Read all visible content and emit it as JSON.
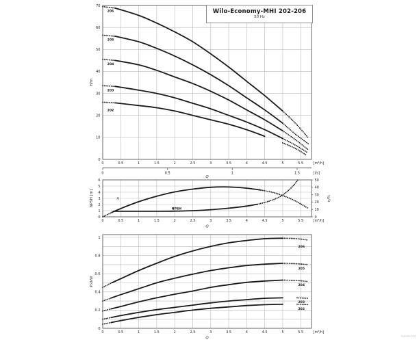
{
  "title_box": {
    "title": "Wilo-Economy-MHI 202-206",
    "subtitle": "50 Hz"
  },
  "watermark": "вимкор",
  "chart_data": [
    {
      "id": "head",
      "type": "line",
      "xlabel": "Q",
      "x_unit": "[m³/h]",
      "ylabel": "H/m",
      "xlim": [
        0,
        5.8
      ],
      "ylim": [
        0,
        70
      ],
      "grid": true,
      "xticks": [
        [
          0,
          "0"
        ],
        [
          0.5,
          "0.5"
        ],
        [
          1,
          "1"
        ],
        [
          1.5,
          "1.5"
        ],
        [
          2,
          "2"
        ],
        [
          2.5,
          "2.5"
        ],
        [
          3,
          "3"
        ],
        [
          3.5,
          "3.5"
        ],
        [
          4,
          "4"
        ],
        [
          4.5,
          "4.5"
        ],
        [
          5,
          "5"
        ],
        [
          5.5,
          "5.5"
        ]
      ],
      "yticks": [
        [
          0,
          "0"
        ],
        [
          10,
          "10"
        ],
        [
          20,
          "20"
        ],
        [
          30,
          "30"
        ],
        [
          40,
          "40"
        ],
        [
          50,
          "50"
        ],
        [
          60,
          "60"
        ],
        [
          70,
          "70"
        ]
      ],
      "secondary_axis": {
        "unit": "[l/s]",
        "ticks": [
          [
            0,
            "0"
          ],
          [
            1.8,
            "0.5"
          ],
          [
            3.6,
            "1"
          ],
          [
            5.4,
            "1.5"
          ]
        ]
      },
      "series": [
        {
          "name": "206",
          "label": "206",
          "label_at": [
            0.22,
            67.5
          ],
          "solid": [
            0.35,
            5.0
          ],
          "points": [
            [
              0,
              69.5
            ],
            [
              0.35,
              68.8
            ],
            [
              1,
              65.5
            ],
            [
              1.5,
              62
            ],
            [
              2,
              58
            ],
            [
              2.5,
              53.5
            ],
            [
              3,
              48
            ],
            [
              3.5,
              42
            ],
            [
              4,
              35.5
            ],
            [
              4.5,
              29
            ],
            [
              5,
              22
            ],
            [
              5.35,
              16.5
            ],
            [
              5.7,
              10
            ]
          ]
        },
        {
          "name": "205",
          "label": "205",
          "label_at": [
            0.22,
            54.5
          ],
          "solid": [
            0.35,
            5.0
          ],
          "points": [
            [
              0,
              56.5
            ],
            [
              0.35,
              56
            ],
            [
              1,
              53.5
            ],
            [
              1.5,
              50.5
            ],
            [
              2,
              47
            ],
            [
              2.5,
              43
            ],
            [
              3,
              38.5
            ],
            [
              3.5,
              33.5
            ],
            [
              4,
              28
            ],
            [
              4.5,
              22.5
            ],
            [
              5,
              16.5
            ],
            [
              5.35,
              11.5
            ],
            [
              5.72,
              7
            ]
          ]
        },
        {
          "name": "204",
          "label": "204",
          "label_at": [
            0.22,
            43.5
          ],
          "solid": [
            0.35,
            5.0
          ],
          "points": [
            [
              0,
              45.5
            ],
            [
              0.35,
              45
            ],
            [
              1,
              43
            ],
            [
              1.5,
              40.5
            ],
            [
              2,
              37.5
            ],
            [
              2.5,
              34.5
            ],
            [
              3,
              31
            ],
            [
              3.5,
              27
            ],
            [
              4,
              22.5
            ],
            [
              4.5,
              18
            ],
            [
              5,
              13
            ],
            [
              5.35,
              9
            ],
            [
              5.7,
              4.5
            ]
          ]
        },
        {
          "name": "203",
          "label": "203",
          "label_at": [
            0.22,
            31.5
          ],
          "solid": [
            0.35,
            5.0
          ],
          "points": [
            [
              0,
              33.5
            ],
            [
              0.35,
              33.2
            ],
            [
              1,
              31.5
            ],
            [
              1.5,
              30
            ],
            [
              2,
              28
            ],
            [
              2.5,
              25.5
            ],
            [
              3,
              23
            ],
            [
              3.5,
              20
            ],
            [
              4,
              17
            ],
            [
              4.5,
              13.5
            ],
            [
              5,
              9.5
            ],
            [
              5.35,
              6.5
            ],
            [
              5.7,
              3
            ]
          ]
        },
        {
          "name": "202",
          "label": "202",
          "label_at": [
            0.22,
            22.5
          ],
          "solid": [
            0.35,
            4.95
          ],
          "points": [
            [
              0,
              26
            ],
            [
              0.35,
              25.7
            ],
            [
              1,
              24.5
            ],
            [
              1.5,
              23.5
            ],
            [
              2,
              22
            ],
            [
              2.5,
              20
            ],
            [
              3,
              18
            ],
            [
              3.5,
              16
            ],
            [
              4,
              13.5
            ],
            [
              4.5,
              10.5
            ],
            [
              5,
              7.5
            ],
            [
              5.35,
              5
            ],
            [
              5.65,
              2
            ]
          ]
        }
      ]
    },
    {
      "id": "npsh",
      "type": "line",
      "xlabel": "Q",
      "x_unit": "[m³/h]",
      "ylabel": "NPSH [m]",
      "ylabel_right": "η/%",
      "xlim": [
        0,
        5.8
      ],
      "ylim": [
        0,
        6
      ],
      "ylim_right": [
        0,
        50
      ],
      "grid": true,
      "xticks": [
        [
          0,
          "0"
        ],
        [
          0.5,
          "0.5"
        ],
        [
          1,
          "1"
        ],
        [
          1.5,
          "1.5"
        ],
        [
          2,
          "2"
        ],
        [
          2.5,
          "2.5"
        ],
        [
          3,
          "3"
        ],
        [
          3.5,
          "3.5"
        ],
        [
          4,
          "4"
        ],
        [
          4.5,
          "4.5"
        ],
        [
          5,
          "5"
        ],
        [
          5.5,
          "5.5"
        ]
      ],
      "yticks": [
        [
          0,
          "0"
        ],
        [
          1,
          "1"
        ],
        [
          2,
          "2"
        ],
        [
          3,
          "3"
        ],
        [
          4,
          "4"
        ],
        [
          5,
          "5"
        ],
        [
          6,
          "6"
        ]
      ],
      "yticks_right": [
        [
          0,
          "0"
        ],
        [
          10,
          "10"
        ],
        [
          20,
          "20"
        ],
        [
          30,
          "30"
        ],
        [
          40,
          "40"
        ],
        [
          50,
          "50"
        ]
      ],
      "series": [
        {
          "name": "eta",
          "label": "η",
          "label_at": [
            0.42,
            3.0
          ],
          "solid": [
            0.25,
            4.4
          ],
          "points": [
            [
              0,
              0
            ],
            [
              0.25,
              0.7
            ],
            [
              0.5,
              1.35
            ],
            [
              1,
              2.45
            ],
            [
              1.5,
              3.35
            ],
            [
              2,
              4.05
            ],
            [
              2.5,
              4.5
            ],
            [
              3,
              4.8
            ],
            [
              3.5,
              4.85
            ],
            [
              4,
              4.65
            ],
            [
              4.4,
              4.35
            ],
            [
              4.8,
              3.85
            ],
            [
              5.2,
              3.0
            ],
            [
              5.5,
              2.1
            ],
            [
              5.7,
              1.4
            ]
          ]
        },
        {
          "name": "npsh",
          "label": "NPSH",
          "label_at": [
            2.05,
            1.35
          ],
          "solid": [
            0.3,
            4.3
          ],
          "points": [
            [
              0.3,
              0.9
            ],
            [
              1,
              0.9
            ],
            [
              1.5,
              0.9
            ],
            [
              2,
              0.92
            ],
            [
              2.5,
              1.0
            ],
            [
              3,
              1.15
            ],
            [
              3.5,
              1.4
            ],
            [
              4,
              1.75
            ],
            [
              4.3,
              2.05
            ],
            [
              4.6,
              2.5
            ],
            [
              4.9,
              3.2
            ],
            [
              5.1,
              4.0
            ],
            [
              5.3,
              5.1
            ],
            [
              5.42,
              6.0
            ]
          ]
        }
      ]
    },
    {
      "id": "power",
      "type": "line",
      "xlabel": "Q",
      "x_unit": "[m³/h]",
      "ylabel": "P₂/kW",
      "xlim": [
        0,
        5.8
      ],
      "ylim": [
        0,
        1.03
      ],
      "grid": true,
      "y_grid_step": 0.1,
      "xticks": [
        [
          0,
          "0"
        ],
        [
          0.5,
          "0.5"
        ],
        [
          1,
          "1"
        ],
        [
          1.5,
          "1.5"
        ],
        [
          2,
          "2"
        ],
        [
          2.5,
          "2.5"
        ],
        [
          3,
          "3"
        ],
        [
          3.5,
          "3.5"
        ],
        [
          4,
          "4"
        ],
        [
          4.5,
          "4.5"
        ],
        [
          5,
          "5"
        ],
        [
          5.5,
          "5.5"
        ]
      ],
      "yticks": [
        [
          0,
          "0"
        ],
        [
          0.2,
          "0.2"
        ],
        [
          0.4,
          "0.4"
        ],
        [
          0.6,
          "0.6"
        ],
        [
          0.8,
          "0.8"
        ],
        [
          1,
          "1"
        ]
      ],
      "series": [
        {
          "name": "206",
          "label": "206",
          "label_at": [
            5.52,
            0.9
          ],
          "solid": [
            0.25,
            5.0
          ],
          "points": [
            [
              0,
              0.45
            ],
            [
              0.25,
              0.5
            ],
            [
              0.5,
              0.545
            ],
            [
              1,
              0.635
            ],
            [
              1.5,
              0.715
            ],
            [
              2,
              0.79
            ],
            [
              2.5,
              0.85
            ],
            [
              3,
              0.9
            ],
            [
              3.5,
              0.94
            ],
            [
              4,
              0.965
            ],
            [
              4.5,
              0.985
            ],
            [
              5,
              0.99
            ],
            [
              5.4,
              0.985
            ],
            [
              5.7,
              0.97
            ]
          ]
        },
        {
          "name": "205",
          "label": "205",
          "label_at": [
            5.52,
            0.66
          ],
          "solid": [
            0.25,
            5.0
          ],
          "points": [
            [
              0,
              0.3
            ],
            [
              0.25,
              0.335
            ],
            [
              0.5,
              0.37
            ],
            [
              1,
              0.435
            ],
            [
              1.5,
              0.5
            ],
            [
              2,
              0.55
            ],
            [
              2.5,
              0.595
            ],
            [
              3,
              0.635
            ],
            [
              3.5,
              0.665
            ],
            [
              4,
              0.69
            ],
            [
              4.5,
              0.705
            ],
            [
              5,
              0.715
            ],
            [
              5.4,
              0.71
            ],
            [
              5.7,
              0.7
            ]
          ]
        },
        {
          "name": "204",
          "label": "204",
          "label_at": [
            5.52,
            0.48
          ],
          "solid": [
            0.25,
            5.0
          ],
          "points": [
            [
              0,
              0.19
            ],
            [
              0.25,
              0.215
            ],
            [
              0.5,
              0.24
            ],
            [
              1,
              0.29
            ],
            [
              1.5,
              0.335
            ],
            [
              2,
              0.375
            ],
            [
              2.5,
              0.41
            ],
            [
              3,
              0.45
            ],
            [
              3.5,
              0.48
            ],
            [
              4,
              0.505
            ],
            [
              4.5,
              0.52
            ],
            [
              5,
              0.53
            ],
            [
              5.4,
              0.525
            ],
            [
              5.7,
              0.515
            ]
          ]
        },
        {
          "name": "203",
          "label": "203",
          "label_at": [
            5.52,
            0.29
          ],
          "solid": [
            0.25,
            5.05
          ],
          "points": [
            [
              0,
              0.1
            ],
            [
              0.25,
              0.12
            ],
            [
              0.5,
              0.14
            ],
            [
              1,
              0.175
            ],
            [
              1.5,
              0.205
            ],
            [
              2,
              0.23
            ],
            [
              2.5,
              0.255
            ],
            [
              3,
              0.28
            ],
            [
              3.5,
              0.3
            ],
            [
              4,
              0.315
            ],
            [
              4.5,
              0.33
            ],
            [
              5,
              0.335
            ],
            [
              5.4,
              0.335
            ],
            [
              5.7,
              0.33
            ]
          ]
        },
        {
          "name": "202",
          "label": "202",
          "label_at": [
            5.52,
            0.215
          ],
          "solid": [
            0.25,
            5.1
          ],
          "points": [
            [
              0,
              0.045
            ],
            [
              0.25,
              0.065
            ],
            [
              0.5,
              0.085
            ],
            [
              1,
              0.12
            ],
            [
              1.5,
              0.15
            ],
            [
              2,
              0.175
            ],
            [
              2.5,
              0.2
            ],
            [
              3,
              0.22
            ],
            [
              3.5,
              0.235
            ],
            [
              4,
              0.25
            ],
            [
              4.5,
              0.26
            ],
            [
              5,
              0.265
            ],
            [
              5.4,
              0.265
            ],
            [
              5.7,
              0.26
            ]
          ]
        }
      ]
    }
  ]
}
